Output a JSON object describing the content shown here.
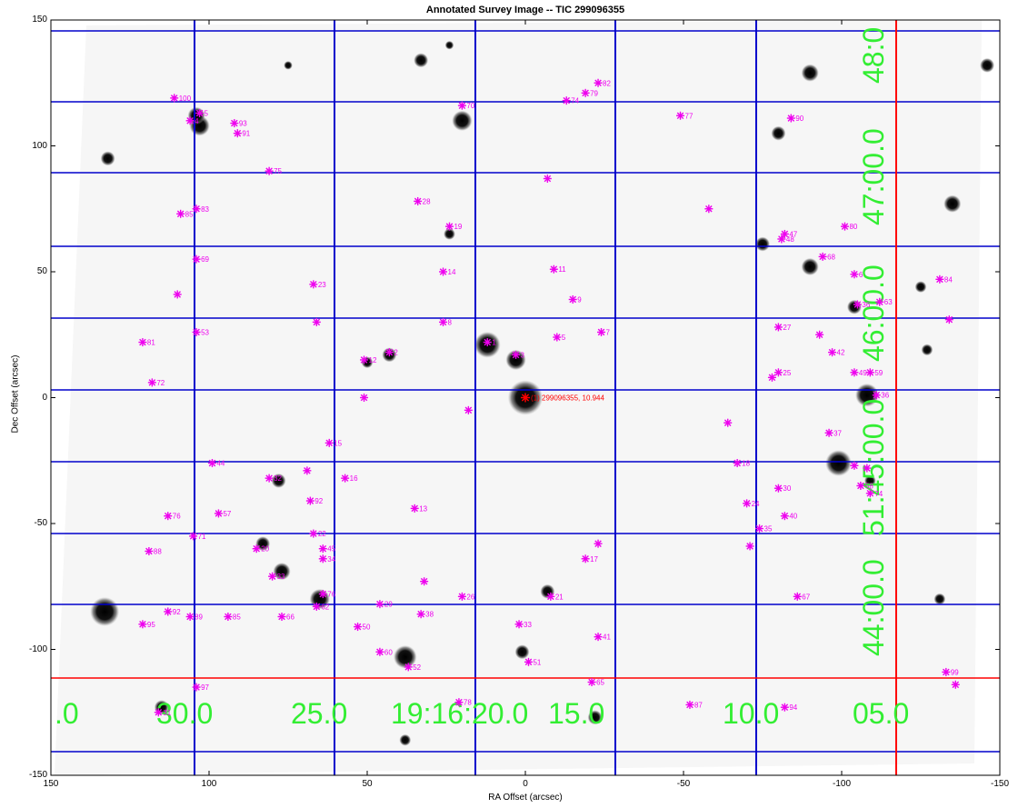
{
  "title": "Annotated Survey Image -- TIC 299096355",
  "axes": {
    "xlabel": "RA Offset (arcsec)",
    "ylabel": "Dec Offset (arcsec)",
    "xticks": [
      "150",
      "100",
      "50",
      "0",
      "-50",
      "-100",
      "-150"
    ],
    "yticks": [
      "150",
      "100",
      "50",
      "0",
      "-50",
      "-100",
      "-150"
    ]
  },
  "target": {
    "label": "(1) 299096355, 10.944",
    "color": "#ff0000"
  },
  "grid": {
    "color": "#0000cc",
    "highlight_color": "#ff0000",
    "ra_labels": [
      ".0",
      "30.0",
      "25.0",
      "19:16:20.0",
      "15.0",
      "10.0",
      "05.0"
    ],
    "dec_labels": [
      "48:0",
      "47:00.0",
      "46:00.0",
      "51:45:00.0",
      "44:00.0"
    ],
    "label_color": "#33ee33"
  },
  "stars": [
    {
      "ra": 0,
      "dec": 0,
      "size": 12
    },
    {
      "ra": 12,
      "dec": 21,
      "size": 9
    },
    {
      "ra": 3,
      "dec": 15,
      "size": 7
    },
    {
      "ra": 38,
      "dec": -103,
      "size": 8
    },
    {
      "ra": 133,
      "dec": -85,
      "size": 10
    },
    {
      "ra": 132,
      "dec": 95,
      "size": 5
    },
    {
      "ra": 103,
      "dec": 108,
      "size": 7
    },
    {
      "ra": 104,
      "dec": 112,
      "size": 6
    },
    {
      "ra": 20,
      "dec": 110,
      "size": 7
    },
    {
      "ra": -90,
      "dec": 129,
      "size": 6
    },
    {
      "ra": -80,
      "dec": 105,
      "size": 5
    },
    {
      "ra": -108,
      "dec": 1,
      "size": 8
    },
    {
      "ra": -99,
      "dec": -26,
      "size": 9
    },
    {
      "ra": -75,
      "dec": 61,
      "size": 5
    },
    {
      "ra": -90,
      "dec": 52,
      "size": 6
    },
    {
      "ra": -135,
      "dec": 77,
      "size": 6
    },
    {
      "ra": -146,
      "dec": 132,
      "size": 5
    },
    {
      "ra": 65,
      "dec": -80,
      "size": 7
    },
    {
      "ra": 77,
      "dec": -69,
      "size": 6
    },
    {
      "ra": 83,
      "dec": -58,
      "size": 5
    },
    {
      "ra": 78,
      "dec": -33,
      "size": 5
    },
    {
      "ra": 43,
      "dec": 17,
      "size": 5
    },
    {
      "ra": 50,
      "dec": 14,
      "size": 4
    },
    {
      "ra": -7,
      "dec": -77,
      "size": 5
    },
    {
      "ra": 1,
      "dec": -101,
      "size": 5
    },
    {
      "ra": -22,
      "dec": -127,
      "size": 5
    },
    {
      "ra": 33,
      "dec": 134,
      "size": 5
    },
    {
      "ra": 115,
      "dec": -123,
      "size": 5
    },
    {
      "ra": -104,
      "dec": 36,
      "size": 5
    },
    {
      "ra": -109,
      "dec": -33,
      "size": 4
    },
    {
      "ra": -125,
      "dec": 44,
      "size": 4
    },
    {
      "ra": 24,
      "dec": 65,
      "size": 4
    },
    {
      "ra": -127,
      "dec": 19,
      "size": 4
    },
    {
      "ra": 75,
      "dec": 132,
      "size": 3
    },
    {
      "ra": 24,
      "dec": 140,
      "size": 3
    },
    {
      "ra": -131,
      "dec": -80,
      "size": 4
    },
    {
      "ra": 38,
      "dec": -136,
      "size": 4
    }
  ],
  "sources": [
    {
      "id": "100",
      "ra": 111,
      "dec": 119
    },
    {
      "id": "5",
      "ra": 103,
      "dec": 113
    },
    {
      "id": "4",
      "ra": 106,
      "dec": 110
    },
    {
      "id": "93",
      "ra": 92,
      "dec": 109
    },
    {
      "id": "91",
      "ra": 91,
      "dec": 105
    },
    {
      "id": "75",
      "ra": 81,
      "dec": 90
    },
    {
      "id": "70",
      "ra": 20,
      "dec": 116
    },
    {
      "id": "74",
      "ra": -13,
      "dec": 118
    },
    {
      "id": "79",
      "ra": -19,
      "dec": 121
    },
    {
      "id": "82",
      "ra": -23,
      "dec": 125
    },
    {
      "id": "77",
      "ra": -49,
      "dec": 112
    },
    {
      "id": "90",
      "ra": -84,
      "dec": 111
    },
    {
      "id": "",
      "ra": -7,
      "dec": 87
    },
    {
      "id": "28",
      "ra": 34,
      "dec": 78
    },
    {
      "id": "",
      "ra": -58,
      "dec": 75
    },
    {
      "id": "83",
      "ra": 104,
      "dec": 75
    },
    {
      "id": "85",
      "ra": 109,
      "dec": 73
    },
    {
      "id": "19",
      "ra": 24,
      "dec": 68
    },
    {
      "id": "80",
      "ra": -101,
      "dec": 68
    },
    {
      "id": "47",
      "ra": -82,
      "dec": 65
    },
    {
      "id": "48",
      "ra": -81,
      "dec": 63
    },
    {
      "id": "68",
      "ra": -94,
      "dec": 56
    },
    {
      "id": "69",
      "ra": 104,
      "dec": 55
    },
    {
      "id": "14",
      "ra": 26,
      "dec": 50
    },
    {
      "id": "11",
      "ra": -9,
      "dec": 51
    },
    {
      "id": "6",
      "ra": -104,
      "dec": 49
    },
    {
      "id": "23",
      "ra": 67,
      "dec": 45
    },
    {
      "id": "",
      "ra": 110,
      "dec": 41
    },
    {
      "id": "9",
      "ra": -15,
      "dec": 39
    },
    {
      "id": "84",
      "ra": -131,
      "dec": 47
    },
    {
      "id": "63",
      "ra": -112,
      "dec": 38
    },
    {
      "id": "36",
      "ra": -105,
      "dec": 37
    },
    {
      "id": "",
      "ra": 66,
      "dec": 30
    },
    {
      "id": "8",
      "ra": 26,
      "dec": 30
    },
    {
      "id": "27",
      "ra": -80,
      "dec": 28
    },
    {
      "id": "",
      "ra": -93,
      "dec": 25
    },
    {
      "id": "",
      "ra": -134,
      "dec": 31
    },
    {
      "id": "53",
      "ra": 104,
      "dec": 26
    },
    {
      "id": "7",
      "ra": -24,
      "dec": 26
    },
    {
      "id": "81",
      "ra": 121,
      "dec": 22
    },
    {
      "id": "1",
      "ra": 12,
      "dec": 22
    },
    {
      "id": "5",
      "ra": -10,
      "dec": 24
    },
    {
      "id": "42",
      "ra": -97,
      "dec": 18
    },
    {
      "id": "2",
      "ra": 43,
      "dec": 18
    },
    {
      "id": "12",
      "ra": 51,
      "dec": 15
    },
    {
      "id": "3",
      "ra": 3,
      "dec": 17
    },
    {
      "id": "25",
      "ra": -80,
      "dec": 10
    },
    {
      "id": "49",
      "ra": -104,
      "dec": 10
    },
    {
      "id": "59",
      "ra": -109,
      "dec": 10
    },
    {
      "id": "",
      "ra": -78,
      "dec": 8
    },
    {
      "id": "72",
      "ra": 118,
      "dec": 6
    },
    {
      "id": "",
      "ra": 51,
      "dec": 0
    },
    {
      "id": "36",
      "ra": -111,
      "dec": 1
    },
    {
      "id": "",
      "ra": 18,
      "dec": -5
    },
    {
      "id": "",
      "ra": -64,
      "dec": -10
    },
    {
      "id": "37",
      "ra": -96,
      "dec": -14
    },
    {
      "id": "15",
      "ra": 62,
      "dec": -18
    },
    {
      "id": "44",
      "ra": 99,
      "dec": -26
    },
    {
      "id": "",
      "ra": 69,
      "dec": -29
    },
    {
      "id": "18",
      "ra": -67,
      "dec": -26
    },
    {
      "id": "",
      "ra": -104,
      "dec": -27
    },
    {
      "id": "",
      "ra": -108,
      "dec": -28
    },
    {
      "id": "16",
      "ra": 57,
      "dec": -32
    },
    {
      "id": "32",
      "ra": 81,
      "dec": -32
    },
    {
      "id": "30",
      "ra": -80,
      "dec": -36
    },
    {
      "id": "58",
      "ra": -106,
      "dec": -35
    },
    {
      "id": "74",
      "ra": -109,
      "dec": -38
    },
    {
      "id": "92",
      "ra": 68,
      "dec": -41
    },
    {
      "id": "24",
      "ra": -70,
      "dec": -42
    },
    {
      "id": "13",
      "ra": 35,
      "dec": -44
    },
    {
      "id": "76",
      "ra": 113,
      "dec": -47
    },
    {
      "id": "57",
      "ra": 97,
      "dec": -46
    },
    {
      "id": "40",
      "ra": -82,
      "dec": -47
    },
    {
      "id": "35",
      "ra": -74,
      "dec": -52
    },
    {
      "id": "71",
      "ra": 105,
      "dec": -55
    },
    {
      "id": "22",
      "ra": 67,
      "dec": -54
    },
    {
      "id": "",
      "ra": -23,
      "dec": -58
    },
    {
      "id": "",
      "ra": -71,
      "dec": -59
    },
    {
      "id": "88",
      "ra": 119,
      "dec": -61
    },
    {
      "id": "20",
      "ra": 85,
      "dec": -60
    },
    {
      "id": "45",
      "ra": 64,
      "dec": -60
    },
    {
      "id": "34",
      "ra": 64,
      "dec": -64
    },
    {
      "id": "17",
      "ra": -19,
      "dec": -64
    },
    {
      "id": "33",
      "ra": 80,
      "dec": -71
    },
    {
      "id": "",
      "ra": 32,
      "dec": -73
    },
    {
      "id": "26",
      "ra": 20,
      "dec": -79
    },
    {
      "id": "21",
      "ra": -8,
      "dec": -79
    },
    {
      "id": "67",
      "ra": -86,
      "dec": -79
    },
    {
      "id": "76",
      "ra": 64,
      "dec": -78
    },
    {
      "id": "29",
      "ra": 46,
      "dec": -82
    },
    {
      "id": "62",
      "ra": 66,
      "dec": -83
    },
    {
      "id": "92",
      "ra": 113,
      "dec": -85
    },
    {
      "id": "89",
      "ra": 106,
      "dec": -87
    },
    {
      "id": "85",
      "ra": 94,
      "dec": -87
    },
    {
      "id": "66",
      "ra": 77,
      "dec": -87
    },
    {
      "id": "38",
      "ra": 33,
      "dec": -86
    },
    {
      "id": "95",
      "ra": 121,
      "dec": -90
    },
    {
      "id": "50",
      "ra": 53,
      "dec": -91
    },
    {
      "id": "33",
      "ra": 2,
      "dec": -90
    },
    {
      "id": "41",
      "ra": -23,
      "dec": -95
    },
    {
      "id": "60",
      "ra": 46,
      "dec": -101
    },
    {
      "id": "52",
      "ra": 37,
      "dec": -107
    },
    {
      "id": "51",
      "ra": -1,
      "dec": -105
    },
    {
      "id": "65",
      "ra": -21,
      "dec": -113
    },
    {
      "id": "97",
      "ra": 104,
      "dec": -115
    },
    {
      "id": "99",
      "ra": -133,
      "dec": -109
    },
    {
      "id": "",
      "ra": -136,
      "dec": -114
    },
    {
      "id": "78",
      "ra": 21,
      "dec": -121
    },
    {
      "id": "87",
      "ra": -52,
      "dec": -122
    },
    {
      "id": "94",
      "ra": -82,
      "dec": -123
    },
    {
      "id": "31",
      "ra": 116,
      "dec": -125
    }
  ]
}
